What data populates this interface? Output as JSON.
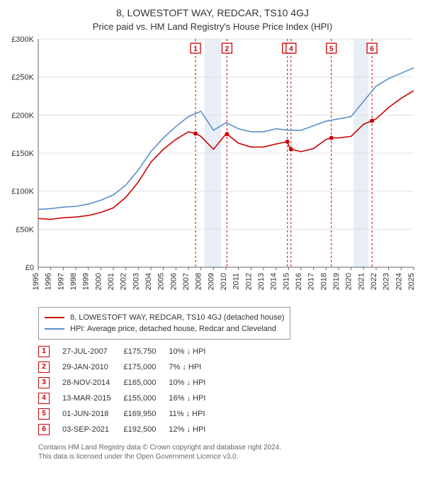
{
  "title": "8, LOWESTOFT WAY, REDCAR, TS10 4GJ",
  "subtitle": "Price paid vs. HM Land Registry's House Price Index (HPI)",
  "chart": {
    "type": "line",
    "background_color": "#ffffff",
    "grid_color": "#e0e0e0",
    "axis_color": "#666666",
    "text_color": "#333333",
    "band_fill": "#e8eef5",
    "band_windows": [
      [
        2008.3,
        2009.6
      ],
      [
        2020.2,
        2021.4
      ]
    ],
    "x_years": [
      1995,
      1996,
      1997,
      1998,
      1999,
      2000,
      2001,
      2002,
      2003,
      2004,
      2005,
      2006,
      2007,
      2008,
      2009,
      2010,
      2011,
      2012,
      2013,
      2014,
      2015,
      2016,
      2017,
      2018,
      2019,
      2020,
      2021,
      2022,
      2023,
      2024,
      2025
    ],
    "ylim": [
      0,
      300000
    ],
    "ytick_step": 50000,
    "y_prefix": "£",
    "y_suffix": "K",
    "label_fontsize": 11,
    "line_width": 1.6,
    "marker_line_color": "#cc0000",
    "marker_line_dash": "3,3"
  },
  "series": [
    {
      "name": "8, LOWESTOFT WAY, REDCAR, TS10 4GJ (detached house)",
      "color": "#cc0000",
      "data": [
        [
          1995,
          64000
        ],
        [
          1996,
          63000
        ],
        [
          1997,
          65000
        ],
        [
          1998,
          66000
        ],
        [
          1999,
          68000
        ],
        [
          2000,
          72000
        ],
        [
          2001,
          78000
        ],
        [
          2002,
          92000
        ],
        [
          2003,
          112000
        ],
        [
          2004,
          138000
        ],
        [
          2005,
          155000
        ],
        [
          2006,
          168000
        ],
        [
          2007,
          178000
        ],
        [
          2007.57,
          175750
        ],
        [
          2008,
          172000
        ],
        [
          2009,
          155000
        ],
        [
          2010,
          175000
        ],
        [
          2010.08,
          175000
        ],
        [
          2011,
          163000
        ],
        [
          2012,
          158000
        ],
        [
          2013,
          158000
        ],
        [
          2014,
          162000
        ],
        [
          2014.91,
          165000
        ],
        [
          2015,
          160000
        ],
        [
          2015.2,
          155000
        ],
        [
          2016,
          152000
        ],
        [
          2017,
          156000
        ],
        [
          2018,
          168000
        ],
        [
          2018.42,
          169950
        ],
        [
          2019,
          170000
        ],
        [
          2020,
          172000
        ],
        [
          2021,
          188000
        ],
        [
          2021.67,
          192500
        ],
        [
          2022,
          195000
        ],
        [
          2023,
          210000
        ],
        [
          2024,
          222000
        ],
        [
          2025,
          232000
        ]
      ]
    },
    {
      "name": "HPI: Average price, detached house, Redcar and Cleveland",
      "color": "#5b8fc9",
      "data": [
        [
          1995,
          76000
        ],
        [
          1996,
          77000
        ],
        [
          1997,
          79000
        ],
        [
          1998,
          80000
        ],
        [
          1999,
          83000
        ],
        [
          2000,
          88000
        ],
        [
          2001,
          95000
        ],
        [
          2002,
          108000
        ],
        [
          2003,
          128000
        ],
        [
          2004,
          152000
        ],
        [
          2005,
          170000
        ],
        [
          2006,
          185000
        ],
        [
          2007,
          198000
        ],
        [
          2008,
          205000
        ],
        [
          2009,
          180000
        ],
        [
          2010,
          190000
        ],
        [
          2011,
          182000
        ],
        [
          2012,
          178000
        ],
        [
          2013,
          178000
        ],
        [
          2014,
          182000
        ],
        [
          2015,
          180000
        ],
        [
          2016,
          180000
        ],
        [
          2017,
          186000
        ],
        [
          2018,
          192000
        ],
        [
          2019,
          195000
        ],
        [
          2020,
          198000
        ],
        [
          2021,
          218000
        ],
        [
          2022,
          238000
        ],
        [
          2023,
          248000
        ],
        [
          2024,
          255000
        ],
        [
          2025,
          262000
        ]
      ]
    }
  ],
  "sales": [
    {
      "n": 1,
      "date": "27-JUL-2007",
      "x": 2007.57,
      "price": "£175,750",
      "delta": "10% ↓ HPI"
    },
    {
      "n": 2,
      "date": "29-JAN-2010",
      "x": 2010.08,
      "price": "£175,000",
      "delta": "7% ↓ HPI"
    },
    {
      "n": 3,
      "date": "28-NOV-2014",
      "x": 2014.91,
      "price": "£165,000",
      "delta": "10% ↓ HPI"
    },
    {
      "n": 4,
      "date": "13-MAR-2015",
      "x": 2015.2,
      "price": "£155,000",
      "delta": "16% ↓ HPI"
    },
    {
      "n": 5,
      "date": "01-JUN-2018",
      "x": 2018.42,
      "price": "£169,950",
      "delta": "11% ↓ HPI"
    },
    {
      "n": 6,
      "date": "03-SEP-2021",
      "x": 2021.67,
      "price": "£192,500",
      "delta": "12% ↓ HPI"
    }
  ],
  "footer": {
    "line1": "Contains HM Land Registry data © Crown copyright and database right 2024.",
    "line2": "This data is licensed under the Open Government Licence v3.0."
  }
}
